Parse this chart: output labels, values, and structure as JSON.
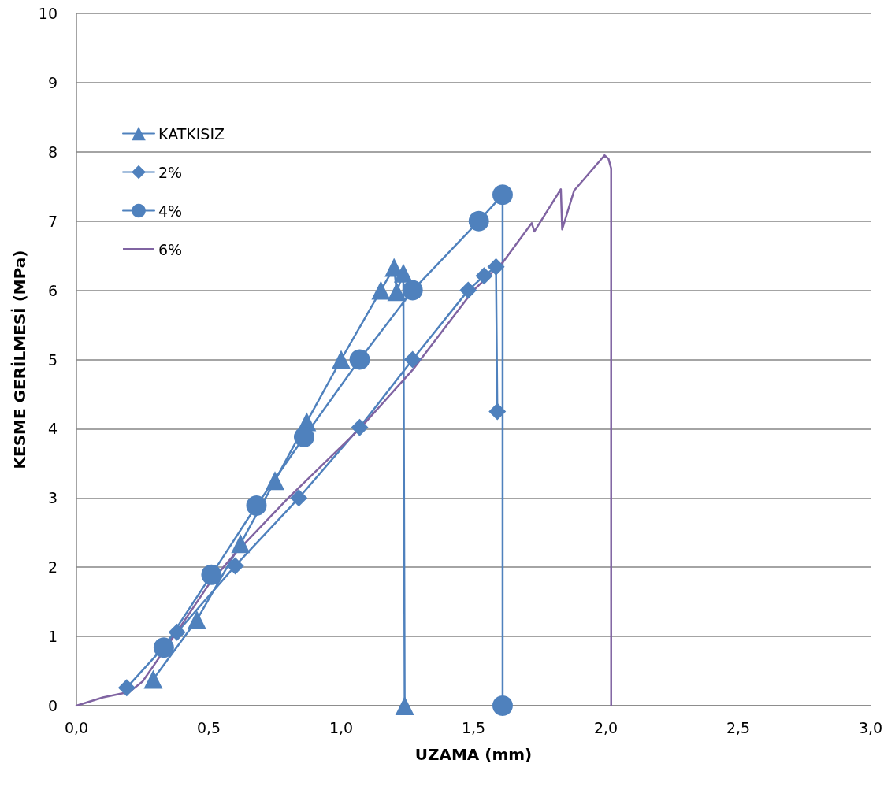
{
  "chart_data": {
    "type": "line",
    "xlabel": "UZAMA (mm)",
    "ylabel": "KESME GERİLMESİ (MPa)",
    "xlim": [
      0,
      3
    ],
    "xticks": [
      {
        "value": 0,
        "label": "0,0"
      },
      {
        "value": 0.5,
        "label": "0,5"
      },
      {
        "value": 1,
        "label": "1,0"
      },
      {
        "value": 1.5,
        "label": "1,5"
      },
      {
        "value": 2,
        "label": "2,0"
      },
      {
        "value": 2.5,
        "label": "2,5"
      },
      {
        "value": 3,
        "label": "3,0"
      }
    ],
    "ylim": [
      0,
      10
    ],
    "yticks": [
      0,
      1,
      2,
      3,
      4,
      5,
      6,
      7,
      8,
      9,
      10
    ],
    "grid": "y",
    "legend": "top left",
    "series": [
      {
        "name": "KATKISIZ",
        "color": "#4f81bd",
        "marker": "triangle",
        "x": [
          0.29,
          0.455,
          0.62,
          0.75,
          0.87,
          1.0,
          1.15,
          1.2,
          1.21,
          1.235,
          1.24
        ],
        "values": [
          0.38,
          1.24,
          2.34,
          3.25,
          4.1,
          5.0,
          6.0,
          6.33,
          5.98,
          6.25,
          0
        ]
      },
      {
        "name": "2%",
        "color": "#4f81bd",
        "marker": "diamond",
        "x": [
          0.19,
          0.38,
          0.6,
          0.84,
          1.07,
          1.27,
          1.48,
          1.54,
          1.585,
          1.59
        ],
        "values": [
          0.26,
          1.06,
          2.02,
          3.0,
          4.02,
          5.0,
          6.0,
          6.21,
          6.34,
          4.25
        ]
      },
      {
        "name": "4%",
        "color": "#4f81bd",
        "marker": "circle",
        "x": [
          0.33,
          0.51,
          0.68,
          0.86,
          1.07,
          1.27,
          1.52,
          1.61,
          1.61
        ],
        "values": [
          0.84,
          1.89,
          2.89,
          3.88,
          5.0,
          6.0,
          7.0,
          7.38,
          0
        ]
      },
      {
        "name": "6%",
        "color": "#8064a2",
        "marker": "none",
        "x": [
          0,
          0.1,
          0.2,
          0.25,
          0.35,
          0.5,
          0.6,
          0.8,
          1.07,
          1.27,
          1.5,
          1.61,
          1.72,
          1.73,
          1.83,
          1.835,
          1.88,
          1.995,
          2.01,
          2.02,
          2.02
        ],
        "values": [
          0,
          0.12,
          0.2,
          0.35,
          0.9,
          1.75,
          2.2,
          3.0,
          4.0,
          4.85,
          6.0,
          6.4,
          6.97,
          6.85,
          7.46,
          6.88,
          7.44,
          7.95,
          7.9,
          7.76,
          0
        ]
      }
    ]
  }
}
